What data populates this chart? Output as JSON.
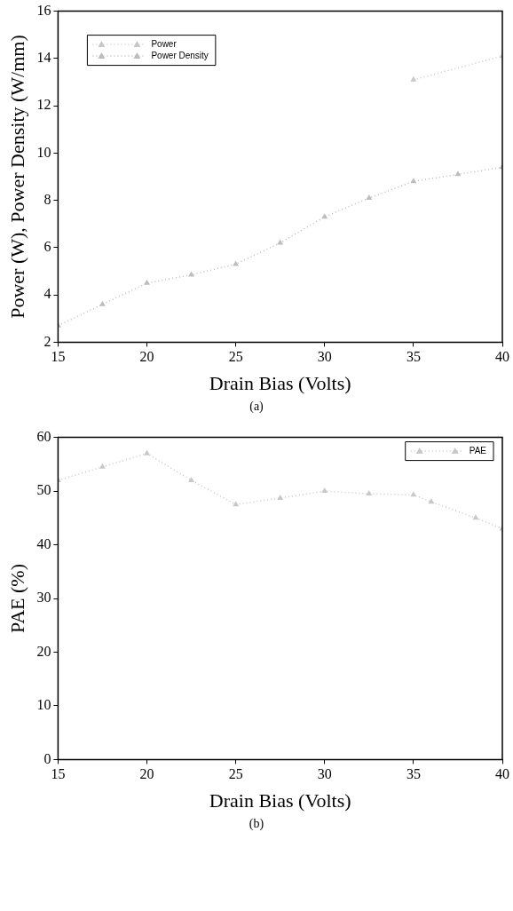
{
  "chart_data": [
    {
      "type": "line",
      "xlabel": "Drain Bias (Volts)",
      "ylabel": "Power (W), Power Density (W/mm)",
      "xlim": [
        15,
        40
      ],
      "xticks": [
        15,
        20,
        25,
        30,
        35,
        40
      ],
      "ylim": [
        2,
        16
      ],
      "yticks": [
        2,
        4,
        6,
        8,
        10,
        12,
        14,
        16
      ],
      "grid": false,
      "legend": "top left",
      "marker": "triangle",
      "line_style": "dotted",
      "annotations": [
        "(a)"
      ],
      "series": [
        {
          "name": "Power",
          "color": "#c8c8c8",
          "x": [
            35,
            40
          ],
          "values": [
            13.1,
            14.1
          ]
        },
        {
          "name": "Power Density",
          "color": "#bdbdbd",
          "x": [
            15,
            17.5,
            20,
            22.5,
            25,
            27.5,
            30,
            32.5,
            35,
            37.5,
            40
          ],
          "values": [
            2.7,
            3.6,
            4.5,
            4.85,
            5.3,
            6.2,
            7.3,
            8.1,
            8.8,
            9.1,
            9.4
          ]
        }
      ]
    },
    {
      "type": "line",
      "xlabel": "Drain Bias (Volts)",
      "ylabel": "PAE (%)",
      "xlim": [
        15,
        40
      ],
      "xticks": [
        15,
        20,
        25,
        30,
        35,
        40
      ],
      "ylim": [
        0,
        60
      ],
      "yticks": [
        0,
        10,
        20,
        30,
        40,
        50,
        60
      ],
      "grid": false,
      "legend": "top right",
      "marker": "triangle",
      "line_style": "dotted",
      "annotations": [
        "(b)"
      ],
      "series": [
        {
          "name": "PAE",
          "color": "#c8c8c8",
          "x": [
            15,
            17.5,
            20,
            22.5,
            25,
            27.5,
            30,
            32.5,
            35,
            36,
            38.5,
            40
          ],
          "values": [
            52,
            54.5,
            57,
            52,
            47.5,
            48.7,
            50,
            49.5,
            49.3,
            48,
            45,
            43
          ]
        }
      ]
    }
  ]
}
